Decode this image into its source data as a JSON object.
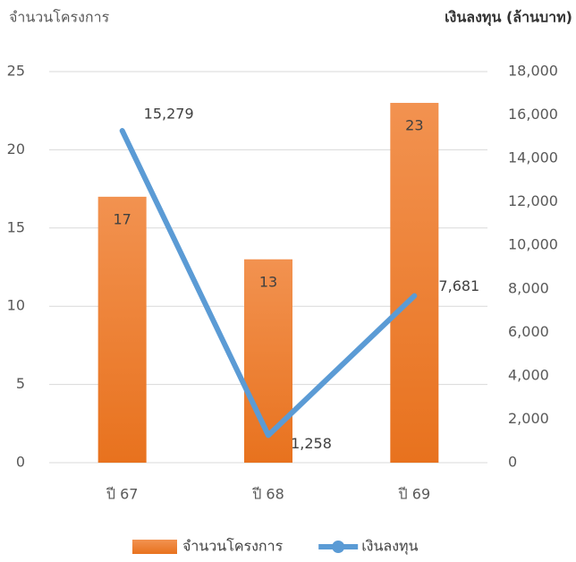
{
  "chart_data": {
    "type": "bar-line",
    "y_label": "จำนวนโครงการ",
    "y2_label": "เงินลงทุน  (ล้านบาท)",
    "categories": [
      "ปี 67",
      "ปี 68",
      "ปี 69"
    ],
    "series": [
      {
        "name": "จำนวนโครงการ",
        "type": "bar",
        "color": "#ed7d31",
        "values": [
          17,
          13,
          23
        ]
      },
      {
        "name": "เงินลงทุน",
        "type": "line",
        "axis": "y2",
        "color": "#5b9bd5",
        "values": [
          15279,
          1258,
          7681
        ],
        "value_labels": [
          "15,279",
          "1,258",
          "7,681"
        ]
      }
    ],
    "ylim": [
      0,
      25
    ],
    "yticks": [
      0,
      5,
      10,
      15,
      20,
      25
    ],
    "y2lim": [
      0,
      18000
    ],
    "y2ticks": [
      0,
      {
        "value": 2000,
        "label": "2,000"
      },
      {
        "value": 4000,
        "label": "4,000"
      },
      {
        "value": 6000,
        "label": "6,000"
      },
      {
        "value": 8000,
        "label": "8,000"
      },
      {
        "value": 10000,
        "label": "10,000"
      },
      {
        "value": 12000,
        "label": "12,000"
      },
      {
        "value": 14000,
        "label": "14,000"
      },
      {
        "value": 16000,
        "label": "16,000"
      },
      {
        "value": 18000,
        "label": "18,000"
      }
    ],
    "grid": true,
    "legend": "bottom"
  }
}
